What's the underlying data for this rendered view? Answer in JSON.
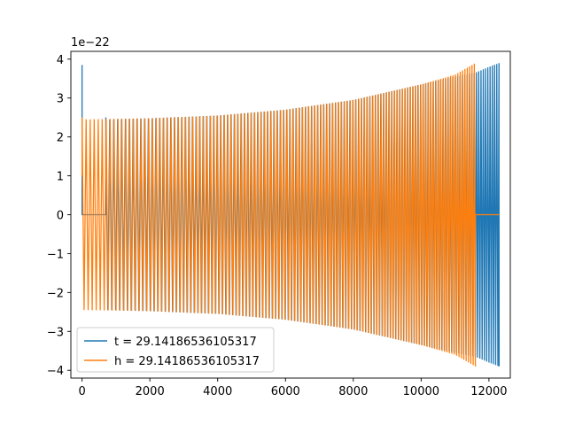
{
  "chart_data": {
    "type": "line",
    "title": "",
    "xlabel": "",
    "ylabel": "",
    "y_offset_text": "1e−22",
    "xlim": [
      -330,
      12630
    ],
    "ylim": [
      -4.2,
      4.2
    ],
    "xticks": [
      0,
      2000,
      4000,
      6000,
      8000,
      10000,
      12000
    ],
    "xtick_labels": [
      "0",
      "2000",
      "4000",
      "6000",
      "8000",
      "10000",
      "12000"
    ],
    "yticks": [
      -4,
      -3,
      -2,
      -1,
      0,
      1,
      2,
      3,
      4
    ],
    "ytick_labels": [
      "−4",
      "−3",
      "−2",
      "−1",
      "0",
      "1",
      "2",
      "3",
      "4"
    ],
    "grid": false,
    "legend_position": "lower-left",
    "series": [
      {
        "name": "t = 29.14186536105317",
        "color": "#1f77b4",
        "description_points": [
          [
            0,
            3.85
          ],
          [
            0,
            0
          ],
          [
            700,
            0
          ],
          [
            700,
            2.5
          ],
          [
            2000,
            2.48
          ],
          [
            4000,
            2.55
          ],
          [
            6000,
            2.7
          ],
          [
            8000,
            2.95
          ],
          [
            10000,
            3.35
          ],
          [
            11500,
            3.6
          ],
          [
            12300,
            3.9
          ]
        ],
        "envelope_x": [
          700,
          2000,
          4000,
          6000,
          8000,
          10000,
          11000,
          11600,
          12000,
          12300
        ],
        "envelope_amp": [
          2.45,
          2.48,
          2.55,
          2.7,
          2.95,
          3.35,
          3.55,
          3.65,
          3.8,
          3.9
        ],
        "x_start": 0,
        "x_end": 12300
      },
      {
        "name": "h = 29.14186536105317",
        "color": "#ff7f0e",
        "envelope_x": [
          0,
          2000,
          4000,
          6000,
          8000,
          10000,
          11000,
          11600
        ],
        "envelope_amp": [
          2.45,
          2.48,
          2.55,
          2.7,
          2.95,
          3.35,
          3.6,
          3.9
        ],
        "x_start": 0,
        "x_end": 11600,
        "zero_tail_end": 12300
      }
    ]
  }
}
